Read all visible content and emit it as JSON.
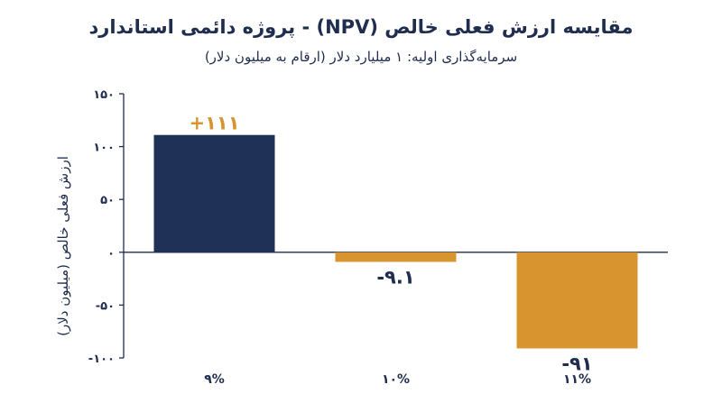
{
  "chart_data": {
    "type": "bar",
    "title": "مقایسه ارزش فعلی خالص (NPV) - پروژه دائمی استاندارد",
    "subtitle": "سرمایه‌گذاری اولیه: ۱ میلیارد دلار (ارقام به میلیون دلار)",
    "ylabel": "ارزش فعلی خالص (میلیون دلار)",
    "xlabel": "",
    "categories": [
      "۹%",
      "۱۰%",
      "۱۱%"
    ],
    "values": [
      111,
      -9.1,
      -91
    ],
    "data_labels": [
      "+۱۱۱",
      "-۹.۱",
      "-۹۱"
    ],
    "bar_colors": [
      "#1f3157",
      "#d8942f",
      "#d8942f"
    ],
    "label_colors": [
      "#d8942f",
      "#1f2d4f",
      "#1f2d4f"
    ],
    "ylim": [
      -100,
      150
    ],
    "yticks": [
      -100,
      -50,
      0,
      50,
      100,
      150
    ],
    "ytick_labels": [
      "-۱۰۰",
      "-۵۰",
      "۰",
      "۵۰",
      "۱۰۰",
      "۱۵۰"
    ],
    "grid": false,
    "legend": "none"
  }
}
